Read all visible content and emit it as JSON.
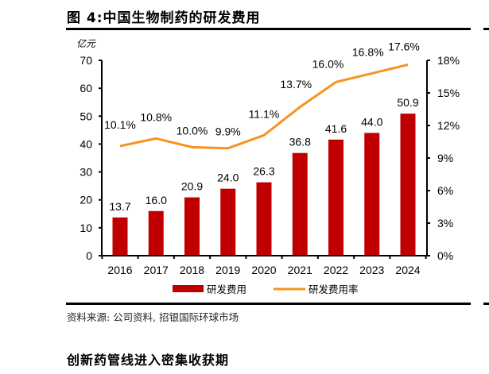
{
  "figure": {
    "title": "图 4:中国生物制药的研发费用",
    "unit_label": "亿元",
    "source": "资料来源: 公司资料, 招银国际环球市场",
    "next_heading": "创新药管线进入密集收获期"
  },
  "colors": {
    "bar": "#C00000",
    "line": "#F7931E",
    "axis": "#000000"
  },
  "chart_data": {
    "type": "bar+line",
    "title": "图 4:中国生物制药的研发费用",
    "categories": [
      "2016",
      "2017",
      "2018",
      "2019",
      "2020",
      "2021",
      "2022",
      "2023",
      "2024"
    ],
    "series": [
      {
        "name": "研发费用",
        "type": "bar",
        "axis": "left",
        "values": [
          13.7,
          16.0,
          20.9,
          24.0,
          26.3,
          36.8,
          41.6,
          44.0,
          50.9
        ],
        "labels": [
          "13.7",
          "16.0",
          "20.9",
          "24.0",
          "26.3",
          "36.8",
          "41.6",
          "44.0",
          "50.9"
        ]
      },
      {
        "name": "研发费用率",
        "type": "line",
        "axis": "right",
        "values": [
          10.1,
          10.8,
          10.0,
          9.9,
          11.1,
          13.7,
          16.0,
          16.8,
          17.6
        ],
        "labels": [
          "10.1%",
          "10.8%",
          "10.0%",
          "9.9%",
          "11.1%",
          "13.7%",
          "16.0%",
          "16.8%",
          "17.6%"
        ]
      }
    ],
    "ylabel": "亿元",
    "ylim": [
      0,
      70
    ],
    "yticks": [
      "0",
      "10",
      "20",
      "30",
      "40",
      "50",
      "60",
      "70"
    ],
    "y2lim": [
      0,
      18
    ],
    "y2ticks": [
      "0%",
      "3%",
      "6%",
      "9%",
      "12%",
      "15%",
      "18%"
    ],
    "legend": [
      "研发费用",
      "研发费用率"
    ],
    "legend_position": "bottom",
    "grid": false
  }
}
